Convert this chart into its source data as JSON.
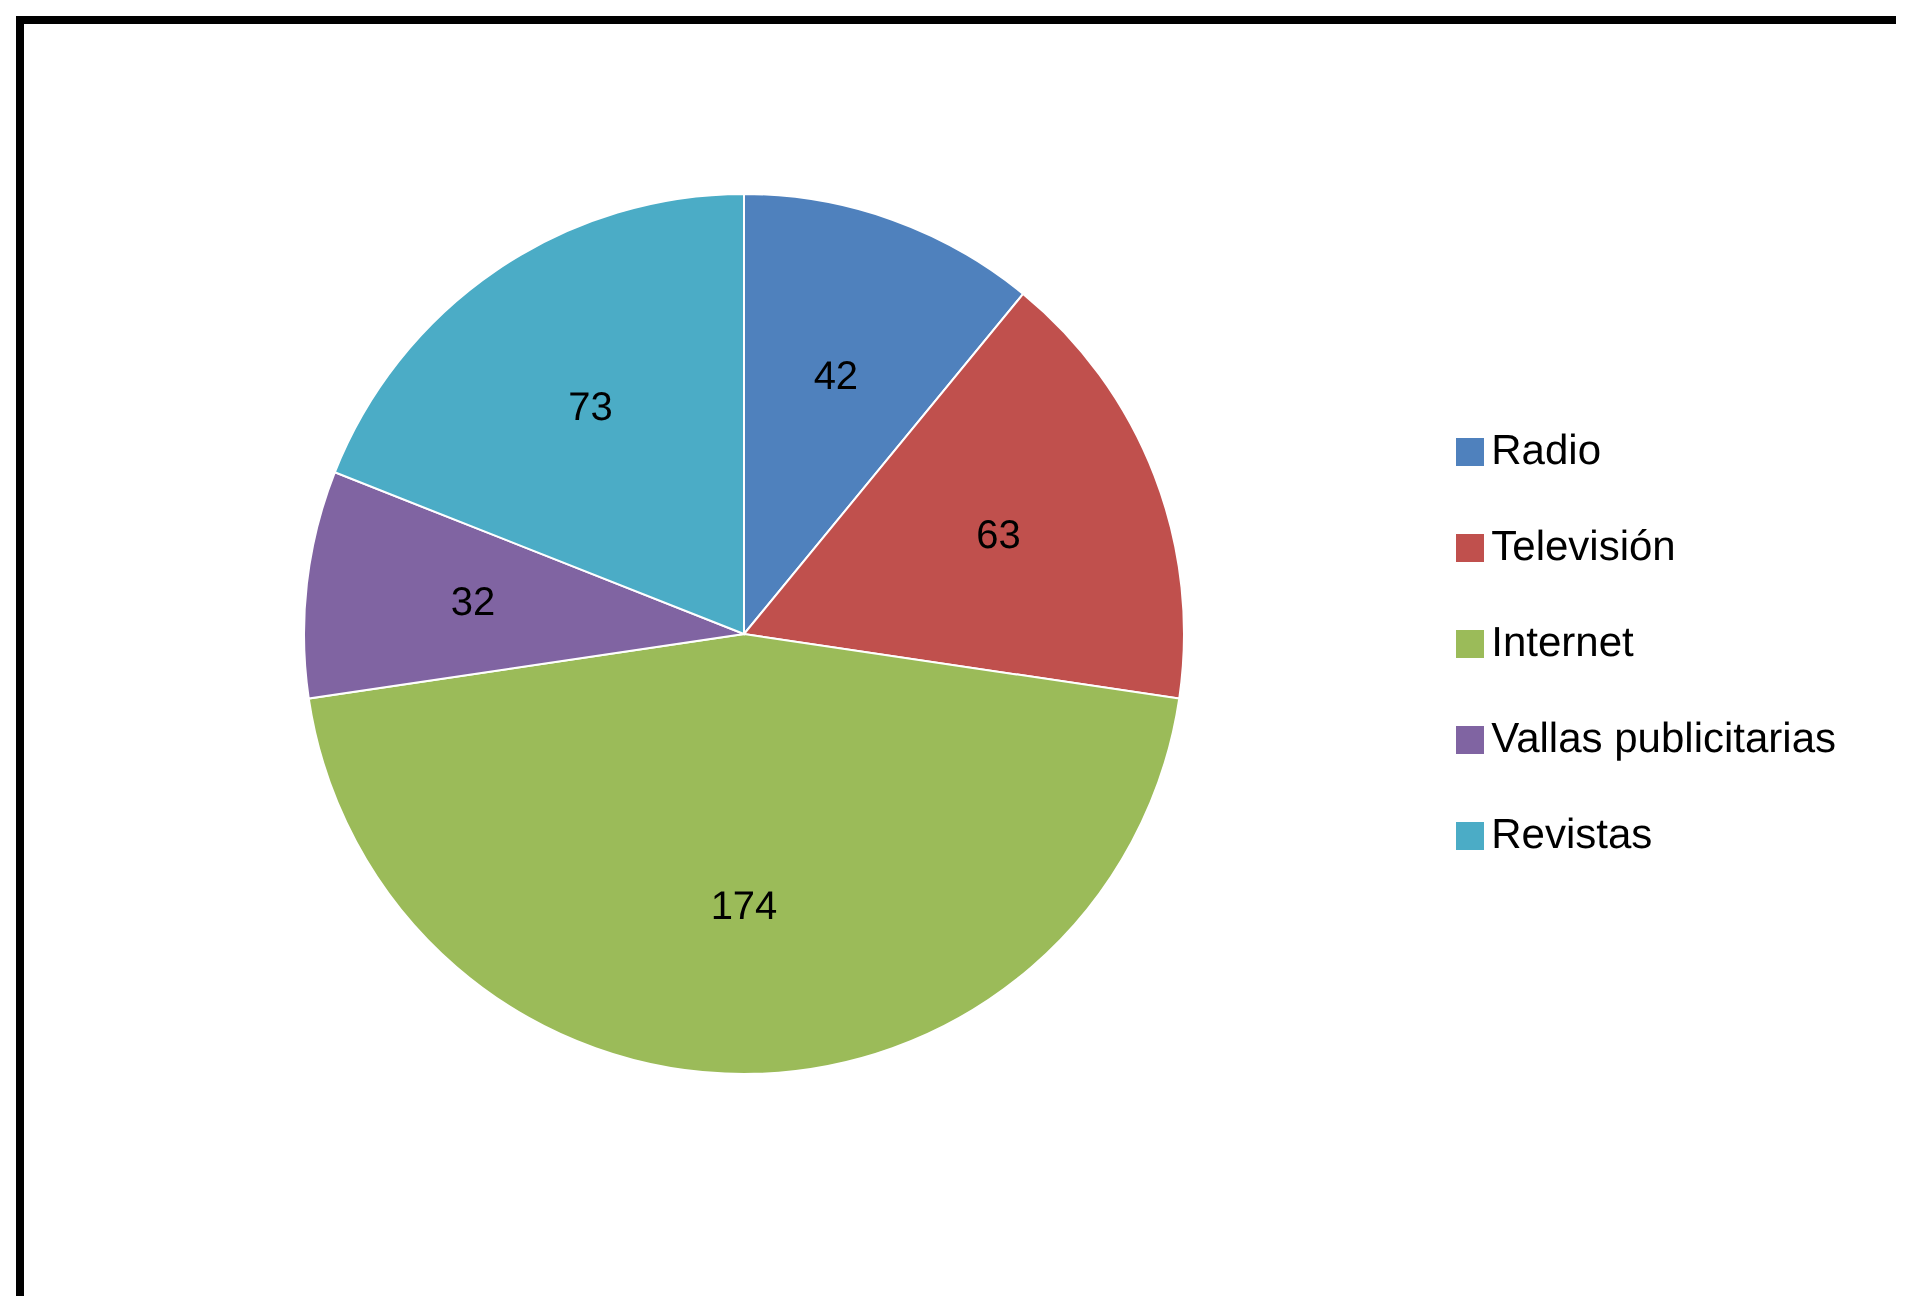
{
  "chart_data": {
    "type": "pie",
    "categories": [
      "Radio",
      "Televisión",
      "Internet",
      "Vallas publicitarias",
      "Revistas"
    ],
    "values": [
      42,
      63,
      174,
      32,
      73
    ],
    "colors": [
      "#4f81bd",
      "#c0504d",
      "#9bbb59",
      "#8064a2",
      "#4bacc6"
    ],
    "data_labels": true,
    "legend": "right"
  }
}
